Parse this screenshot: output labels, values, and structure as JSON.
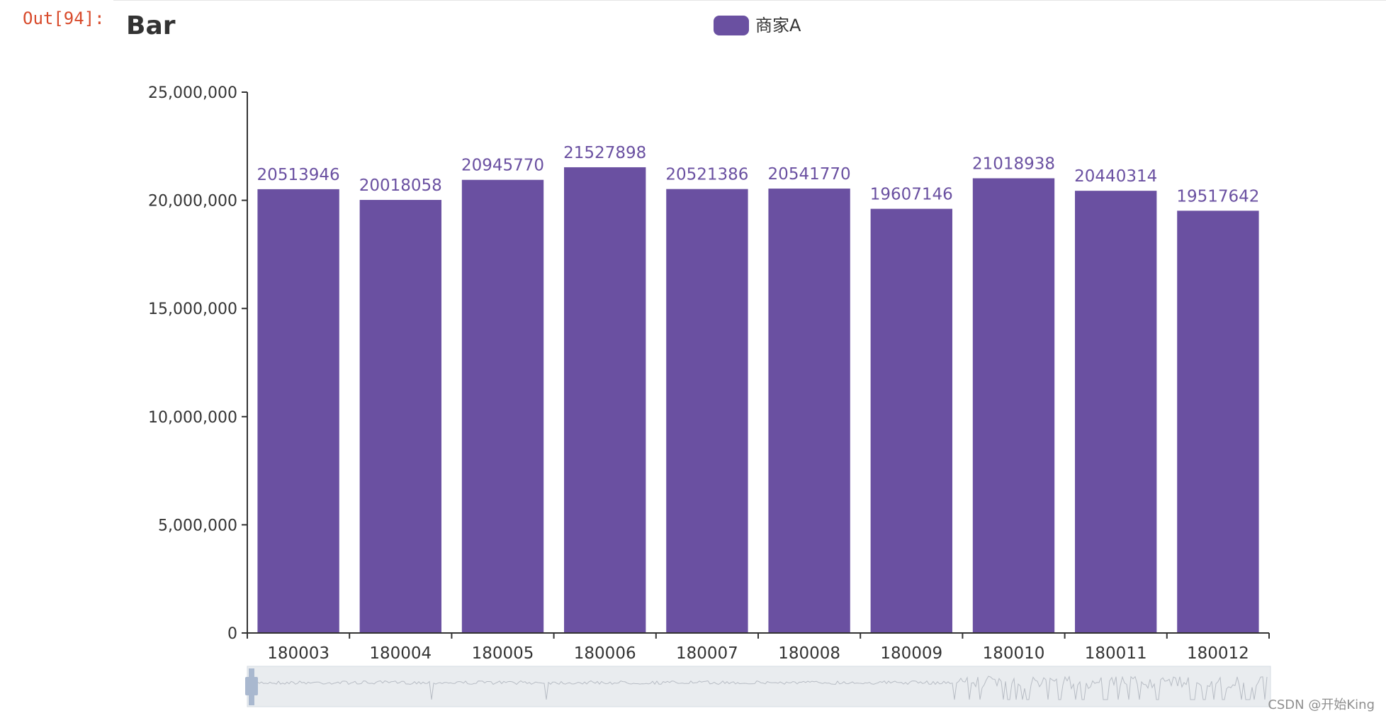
{
  "notebook": {
    "out_label": "Out[94]:"
  },
  "watermark": "CSDN @开始King",
  "colors": {
    "bar": "#6a50a1",
    "axis": "#333333",
    "slider_fill": "#e9ecef",
    "slider_handle": "#a9b8cf"
  },
  "chart_data": {
    "type": "bar",
    "title": "Bar",
    "legend": [
      "商家A"
    ],
    "categories": [
      "180003",
      "180004",
      "180005",
      "180006",
      "180007",
      "180008",
      "180009",
      "180010",
      "180011",
      "180012"
    ],
    "series": [
      {
        "name": "商家A",
        "values": [
          20513946,
          20018058,
          20945770,
          21527898,
          20521386,
          20541770,
          19607146,
          21018938,
          20440314,
          19517642
        ]
      }
    ],
    "yticks": [
      {
        "value": 0,
        "label": "0"
      },
      {
        "value": 5000000,
        "label": "5,000,000"
      },
      {
        "value": 10000000,
        "label": "10,000,000"
      },
      {
        "value": 15000000,
        "label": "15,000,000"
      },
      {
        "value": 20000000,
        "label": "20,000,000"
      },
      {
        "value": 25000000,
        "label": "25,000,000"
      }
    ],
    "ylim": [
      0,
      25000000
    ],
    "xlabel": "",
    "ylabel": "",
    "grid": false,
    "legend_position": "top-center",
    "datazoom": true
  }
}
